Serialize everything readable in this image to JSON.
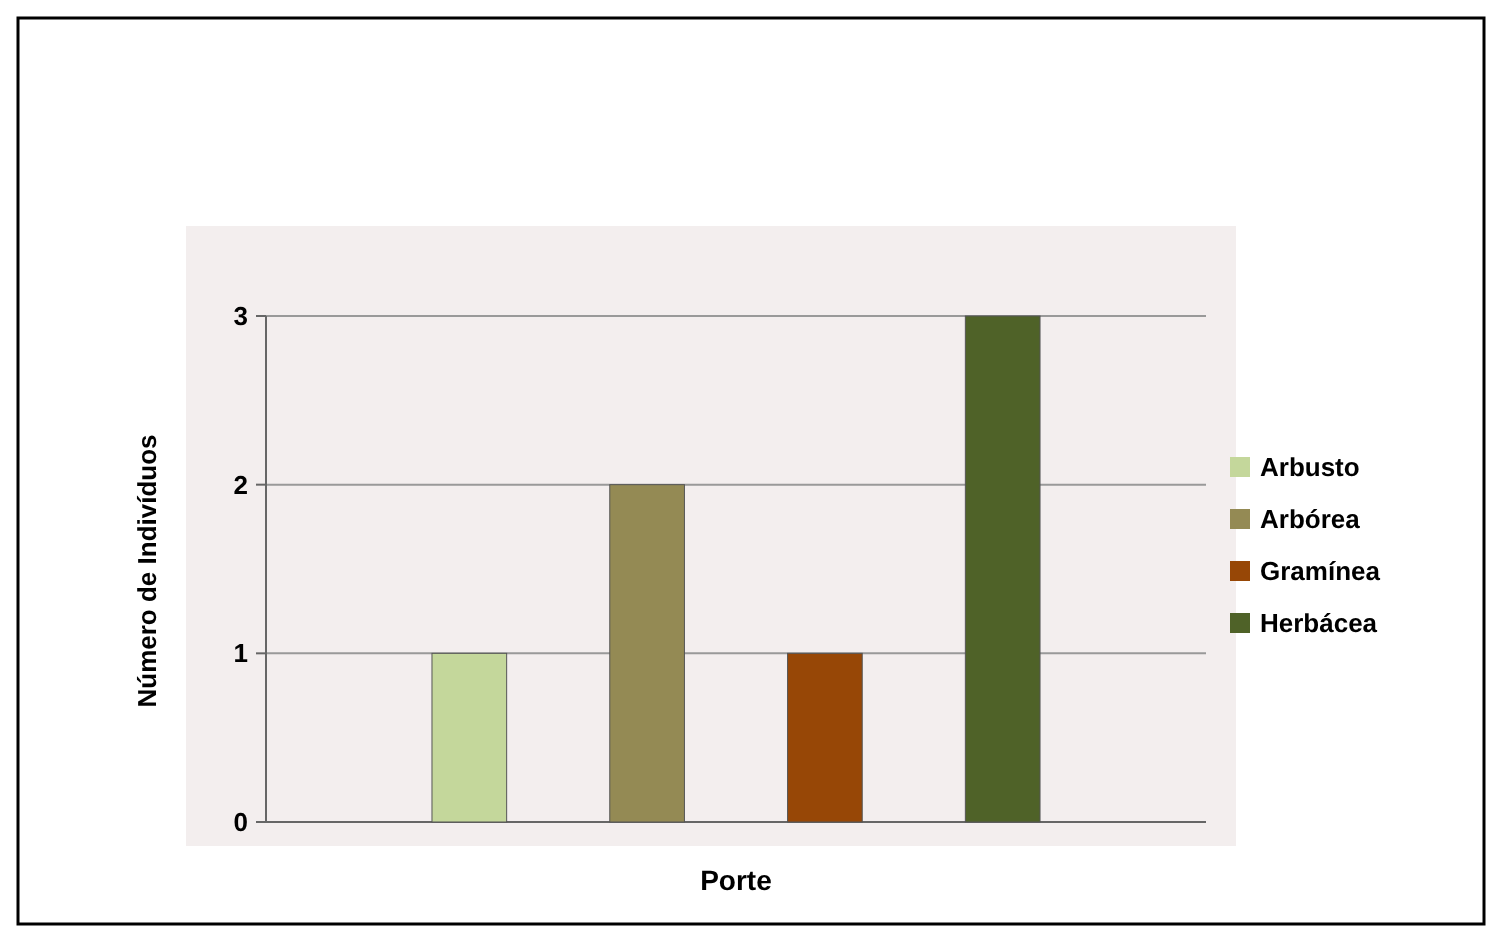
{
  "chart_data": {
    "type": "bar",
    "xlabel": "Porte",
    "ylabel": "Número de Indivíduos",
    "categories": [
      null
    ],
    "series": [
      {
        "name": "Arbusto",
        "color": "#c4d79b",
        "values": [
          1
        ]
      },
      {
        "name": "Arbórea",
        "color": "#948a54",
        "values": [
          2
        ]
      },
      {
        "name": "Gramínea",
        "color": "#974706",
        "values": [
          1
        ]
      },
      {
        "name": "Herbácea",
        "color": "#4f6228",
        "values": [
          3
        ]
      }
    ],
    "ylim": [
      0,
      3
    ],
    "yticks": [
      0,
      1,
      2,
      3
    ],
    "grid": "y",
    "legend": "right"
  }
}
